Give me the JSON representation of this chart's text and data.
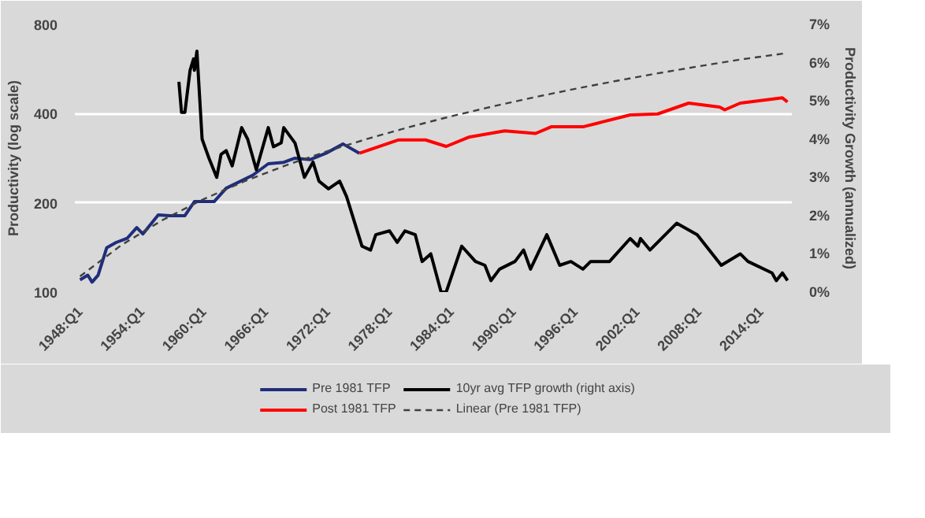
{
  "chart_data": {
    "type": "line",
    "ylabel": "Productivity (log scale)",
    "y2label": "Productivity Growth (annualized)",
    "log": "y",
    "grid": "y",
    "legend": "bottom",
    "xlim": [
      "1947-07",
      "2017-01"
    ],
    "xticks": [
      {
        "value": "1948-01",
        "label": "1948:Q1"
      },
      {
        "value": "1954-01",
        "label": "1954:Q1"
      },
      {
        "value": "1960-01",
        "label": "1960:Q1"
      },
      {
        "value": "1966-01",
        "label": "1966:Q1"
      },
      {
        "value": "1972-01",
        "label": "1972:Q1"
      },
      {
        "value": "1978-01",
        "label": "1978:Q1"
      },
      {
        "value": "1984-01",
        "label": "1984:Q1"
      },
      {
        "value": "1990-01",
        "label": "1990:Q1"
      },
      {
        "value": "1996-01",
        "label": "1996:Q1"
      },
      {
        "value": "2002-01",
        "label": "2002:Q1"
      },
      {
        "value": "2008-01",
        "label": "2008:Q1"
      },
      {
        "value": "2014-01",
        "label": "2014:Q1"
      }
    ],
    "ylim": [
      100,
      800
    ],
    "yticks": [
      100,
      200,
      400,
      800
    ],
    "y2lim": [
      0,
      7
    ],
    "y2ticks": [
      {
        "value": 0,
        "label": "0%"
      },
      {
        "value": 1,
        "label": "1%"
      },
      {
        "value": 2,
        "label": "2%"
      },
      {
        "value": 3,
        "label": "3%"
      },
      {
        "value": 4,
        "label": "4%"
      },
      {
        "value": 5,
        "label": "5%"
      },
      {
        "value": 6,
        "label": "6%"
      },
      {
        "value": 7,
        "label": "7%"
      }
    ],
    "series": [
      {
        "name": "Pre 1981 TFP",
        "color": "#1f2d7a",
        "x": [
          "1948-01",
          "1948-10",
          "1949-03",
          "1949-10",
          "1950-08",
          "1951-07",
          "1952-08",
          "1953-07",
          "1954-02",
          "1955-08",
          "1956-09",
          "1958-03",
          "1959-02",
          "1961-01",
          "1962-03",
          "1964-10",
          "1966-04",
          "1967-10",
          "1968-11",
          "1970-05",
          "1971-11",
          "1973-07",
          "1975-02"
        ],
        "values": [
          110,
          114,
          108,
          114,
          141,
          147,
          152,
          165,
          157,
          182,
          181,
          181,
          202,
          202,
          224,
          248,
          271,
          274,
          283,
          280,
          294,
          316,
          294
        ]
      },
      {
        "name": "Post 1981 TFP",
        "color": "#ff0000",
        "x": [
          "1975-02",
          "1978-11",
          "1981-07",
          "1983-07",
          "1985-09",
          "1989-03",
          "1992-03",
          "1993-09",
          "1996-10",
          "1998-04",
          "2001-05",
          "2004-01",
          "2007-01",
          "2010-01",
          "2010-07",
          "2012-01",
          "2016-02",
          "2016-08"
        ],
        "values": [
          294,
          326,
          326,
          310,
          333,
          350,
          343,
          361,
          361,
          372,
          396,
          399,
          434,
          421,
          412,
          434,
          452,
          438
        ]
      },
      {
        "name": "10yr avg TFP growth (right axis)",
        "color": "#000000",
        "axis": "y2",
        "x": [
          "1957-08",
          "1957-11",
          "1958-03",
          "1958-09",
          "1959-01",
          "1959-02",
          "1959-05",
          "1959-11",
          "1960-07",
          "1961-04",
          "1961-09",
          "1962-03",
          "1962-10",
          "1963-09",
          "1964-04",
          "1965-02",
          "1966-04",
          "1966-10",
          "1967-07",
          "1967-10",
          "1968-11",
          "1969-10",
          "1970-08",
          "1971-03",
          "1972-02",
          "1973-03",
          "1973-11",
          "1975-05",
          "1976-03",
          "1976-09",
          "1978-01",
          "1978-10",
          "1979-07",
          "1980-07",
          "1981-03",
          "1982-01",
          "1983-01",
          "1983-07",
          "1985-01",
          "1986-05",
          "1987-04",
          "1987-11",
          "1988-09",
          "1990-03",
          "1991-01",
          "1991-09",
          "1993-04",
          "1994-07",
          "1995-08",
          "1996-10",
          "1997-07",
          "1999-05",
          "2001-05",
          "2002-02",
          "2002-05",
          "2003-04",
          "2005-11",
          "2007-11",
          "2010-03",
          "2012-01",
          "2012-10",
          "2015-02",
          "2015-07",
          "2016-02",
          "2016-08"
        ],
        "values": [
          5.5,
          4.7,
          4.7,
          5.8,
          6.1,
          5.8,
          6.3,
          4.0,
          3.5,
          3.0,
          3.6,
          3.7,
          3.3,
          4.3,
          4.0,
          3.2,
          4.3,
          3.8,
          3.9,
          4.3,
          3.9,
          3.0,
          3.4,
          2.9,
          2.7,
          2.9,
          2.5,
          1.2,
          1.1,
          1.5,
          1.6,
          1.3,
          1.6,
          1.5,
          0.8,
          1.0,
          0,
          0.0,
          1.2,
          0.8,
          0.7,
          0.3,
          0.6,
          0.8,
          1.1,
          0.6,
          1.5,
          0.7,
          0.8,
          0.6,
          0.8,
          0.8,
          1.4,
          1.2,
          1.4,
          1.1,
          1.8,
          1.5,
          0.7,
          1.0,
          0.8,
          0.5,
          0.3,
          0.5,
          0.3
        ]
      },
      {
        "name": "Linear (Pre 1981 TFP)",
        "color": "#404040",
        "line_style": "dashed",
        "x": [
          "1948-01",
          "1952-01",
          "1956-01",
          "1960-01",
          "1964-01",
          "1968-01",
          "1972-01",
          "1976-01",
          "1980-01",
          "1984-01",
          "1988-01",
          "1992-01",
          "1996-01",
          "2000-01",
          "2004-01",
          "2008-01",
          "2012-01",
          "2016-07"
        ],
        "values": [
          113,
          144,
          175,
          206,
          237,
          268,
          299,
          330,
          361,
          392,
          423,
          454,
          485,
          516,
          547,
          578,
          609,
          640
        ]
      }
    ]
  }
}
